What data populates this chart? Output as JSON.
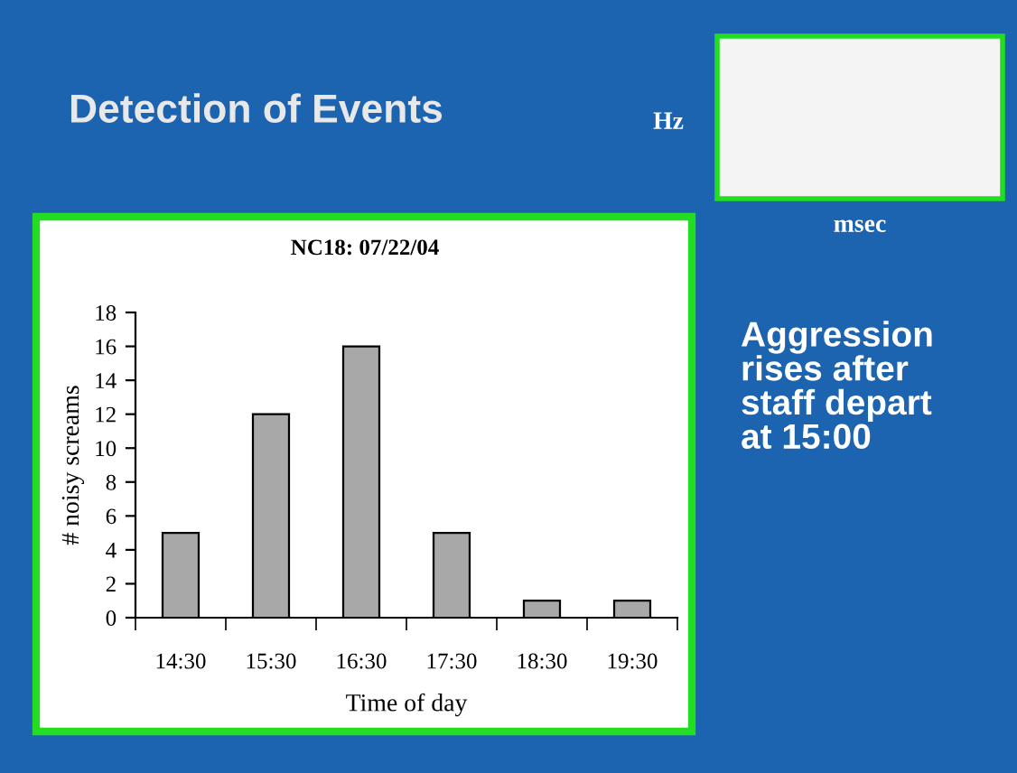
{
  "chart_data": {
    "type": "bar",
    "title": "Detection of Events",
    "subtitle": "NC18: 07/22/04",
    "xlabel": "Time of day",
    "ylabel": "# noisy screams",
    "categories": [
      "14:30",
      "15:30",
      "16:30",
      "17:30",
      "18:30",
      "19:30"
    ],
    "values": [
      5,
      12,
      16,
      5,
      1,
      1
    ],
    "color": "#a8a8a8",
    "ylim": [
      0,
      18
    ],
    "yticks": [
      0,
      2,
      4,
      6,
      8,
      10,
      12,
      14,
      16,
      18
    ],
    "grid": false,
    "annotations": [
      "Hz",
      "msec",
      "Aggression\nrises after\nstaff depart\nat 15:00"
    ]
  }
}
